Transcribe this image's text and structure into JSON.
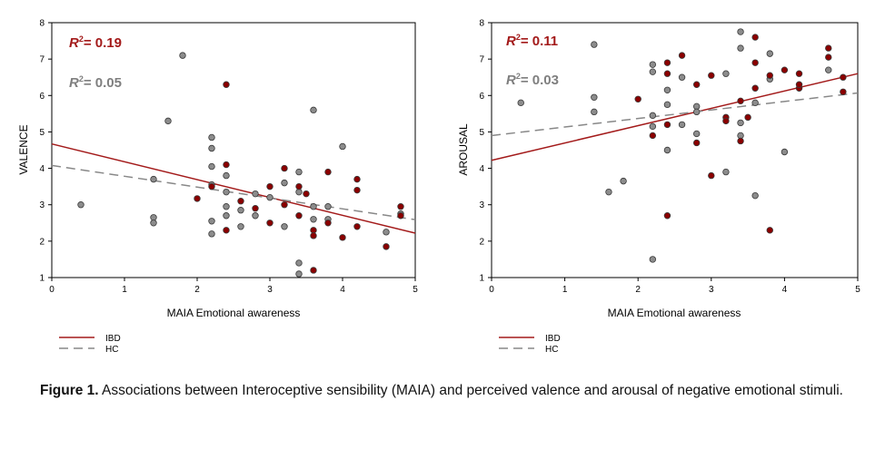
{
  "colors": {
    "ibd": "#a31a1a",
    "hc": "#7f7f7f",
    "ibd_point": "#8b0000",
    "hc_point": "#8c8c8c"
  },
  "chart_data": [
    {
      "type": "scatter",
      "xlabel": "MAIA Emotional awareness",
      "ylabel": "VALENCE",
      "xlim": [
        0,
        5
      ],
      "ylim": [
        1,
        8
      ],
      "xticks": [
        "0",
        "1",
        "2",
        "3",
        "4",
        "5"
      ],
      "yticks": [
        "1",
        "2",
        "3",
        "4",
        "5",
        "6",
        "7",
        "8"
      ],
      "r2_ibd": "= 0.19",
      "r2_hc": "= 0.05",
      "legend": [
        "IBD",
        "HC"
      ],
      "series": [
        {
          "name": "IBD",
          "fit": [
            [
              0,
              4.67
            ],
            [
              5,
              2.22
            ]
          ],
          "points": [
            [
              2.0,
              3.17
            ],
            [
              2.2,
              3.5
            ],
            [
              2.4,
              4.1
            ],
            [
              2.4,
              6.3
            ],
            [
              2.4,
              2.3
            ],
            [
              2.6,
              3.1
            ],
            [
              2.8,
              2.9
            ],
            [
              3.0,
              3.5
            ],
            [
              3.0,
              2.5
            ],
            [
              3.2,
              4.0
            ],
            [
              3.2,
              3.0
            ],
            [
              3.4,
              3.5
            ],
            [
              3.4,
              2.7
            ],
            [
              3.5,
              3.3
            ],
            [
              3.6,
              2.3
            ],
            [
              3.6,
              1.2
            ],
            [
              3.8,
              3.9
            ],
            [
              3.8,
              2.5
            ],
            [
              4.0,
              2.1
            ],
            [
              4.2,
              3.7
            ],
            [
              4.2,
              3.4
            ],
            [
              4.2,
              2.4
            ],
            [
              4.6,
              1.85
            ],
            [
              4.8,
              2.95
            ],
            [
              4.8,
              2.7
            ],
            [
              3.6,
              2.15
            ]
          ]
        },
        {
          "name": "HC",
          "fit": [
            [
              0,
              4.08
            ],
            [
              5,
              2.59
            ]
          ],
          "points": [
            [
              0.4,
              3.0
            ],
            [
              1.4,
              3.7
            ],
            [
              1.4,
              2.65
            ],
            [
              1.4,
              2.5
            ],
            [
              1.6,
              5.3
            ],
            [
              1.8,
              7.1
            ],
            [
              2.2,
              4.85
            ],
            [
              2.2,
              4.55
            ],
            [
              2.2,
              4.05
            ],
            [
              2.2,
              3.55
            ],
            [
              2.2,
              2.55
            ],
            [
              2.2,
              2.2
            ],
            [
              2.4,
              3.8
            ],
            [
              2.4,
              3.35
            ],
            [
              2.4,
              2.95
            ],
            [
              2.4,
              2.7
            ],
            [
              2.6,
              2.85
            ],
            [
              2.6,
              2.4
            ],
            [
              2.8,
              3.3
            ],
            [
              2.8,
              2.7
            ],
            [
              3.0,
              3.2
            ],
            [
              3.2,
              2.4
            ],
            [
              3.2,
              3.6
            ],
            [
              3.4,
              3.9
            ],
            [
              3.4,
              3.35
            ],
            [
              3.4,
              1.4
            ],
            [
              3.4,
              1.1
            ],
            [
              3.6,
              5.6
            ],
            [
              3.6,
              2.95
            ],
            [
              3.6,
              2.6
            ],
            [
              3.8,
              2.95
            ],
            [
              3.8,
              2.6
            ],
            [
              4.0,
              4.6
            ],
            [
              4.6,
              2.25
            ],
            [
              4.8,
              2.75
            ]
          ]
        }
      ]
    },
    {
      "type": "scatter",
      "xlabel": "MAIA Emotional awareness",
      "ylabel": "AROUSAL",
      "xlim": [
        0,
        5
      ],
      "ylim": [
        1,
        8
      ],
      "xticks": [
        "0",
        "1",
        "2",
        "3",
        "4",
        "5"
      ],
      "yticks": [
        "1",
        "2",
        "3",
        "4",
        "5",
        "6",
        "7",
        "8"
      ],
      "r2_ibd": "= 0.11",
      "r2_hc": "= 0.03",
      "legend": [
        "IBD",
        "HC"
      ],
      "series": [
        {
          "name": "IBD",
          "fit": [
            [
              0,
              4.22
            ],
            [
              5,
              6.6
            ]
          ],
          "points": [
            [
              2.0,
              5.9
            ],
            [
              2.2,
              4.9
            ],
            [
              2.4,
              6.9
            ],
            [
              2.4,
              6.6
            ],
            [
              2.4,
              5.2
            ],
            [
              2.4,
              2.7
            ],
            [
              2.6,
              7.1
            ],
            [
              2.8,
              6.3
            ],
            [
              2.8,
              4.7
            ],
            [
              3.0,
              6.55
            ],
            [
              3.0,
              3.8
            ],
            [
              3.2,
              5.4
            ],
            [
              3.2,
              5.3
            ],
            [
              3.4,
              5.85
            ],
            [
              3.4,
              4.75
            ],
            [
              3.5,
              5.4
            ],
            [
              3.6,
              7.6
            ],
            [
              3.6,
              6.9
            ],
            [
              3.6,
              6.2
            ],
            [
              3.8,
              6.55
            ],
            [
              3.8,
              2.3
            ],
            [
              4.0,
              6.7
            ],
            [
              4.2,
              6.6
            ],
            [
              4.2,
              6.2
            ],
            [
              4.6,
              7.3
            ],
            [
              4.6,
              7.05
            ],
            [
              4.8,
              6.1
            ],
            [
              4.8,
              6.5
            ],
            [
              4.2,
              6.3
            ]
          ]
        },
        {
          "name": "HC",
          "fit": [
            [
              0,
              4.9
            ],
            [
              5,
              6.07
            ]
          ],
          "points": [
            [
              0.4,
              5.8
            ],
            [
              1.4,
              7.4
            ],
            [
              1.4,
              5.95
            ],
            [
              1.4,
              5.55
            ],
            [
              1.6,
              3.35
            ],
            [
              1.8,
              3.65
            ],
            [
              2.2,
              6.85
            ],
            [
              2.2,
              6.65
            ],
            [
              2.2,
              5.45
            ],
            [
              2.2,
              5.15
            ],
            [
              2.2,
              1.5
            ],
            [
              2.4,
              6.15
            ],
            [
              2.4,
              5.75
            ],
            [
              2.4,
              4.5
            ],
            [
              2.6,
              6.5
            ],
            [
              2.6,
              5.2
            ],
            [
              2.8,
              5.7
            ],
            [
              2.8,
              5.55
            ],
            [
              2.8,
              4.95
            ],
            [
              3.2,
              6.6
            ],
            [
              3.2,
              3.9
            ],
            [
              3.4,
              7.75
            ],
            [
              3.4,
              7.3
            ],
            [
              3.4,
              5.25
            ],
            [
              3.4,
              4.9
            ],
            [
              3.6,
              5.8
            ],
            [
              3.6,
              3.25
            ],
            [
              3.8,
              7.15
            ],
            [
              3.8,
              6.45
            ],
            [
              4.0,
              4.45
            ],
            [
              4.6,
              6.7
            ]
          ]
        }
      ]
    }
  ],
  "caption": {
    "label": "Figure 1.",
    "text": " Associations between Interoceptive sensibility (MAIA) and perceived valence and arousal of negative emotional stimuli."
  }
}
